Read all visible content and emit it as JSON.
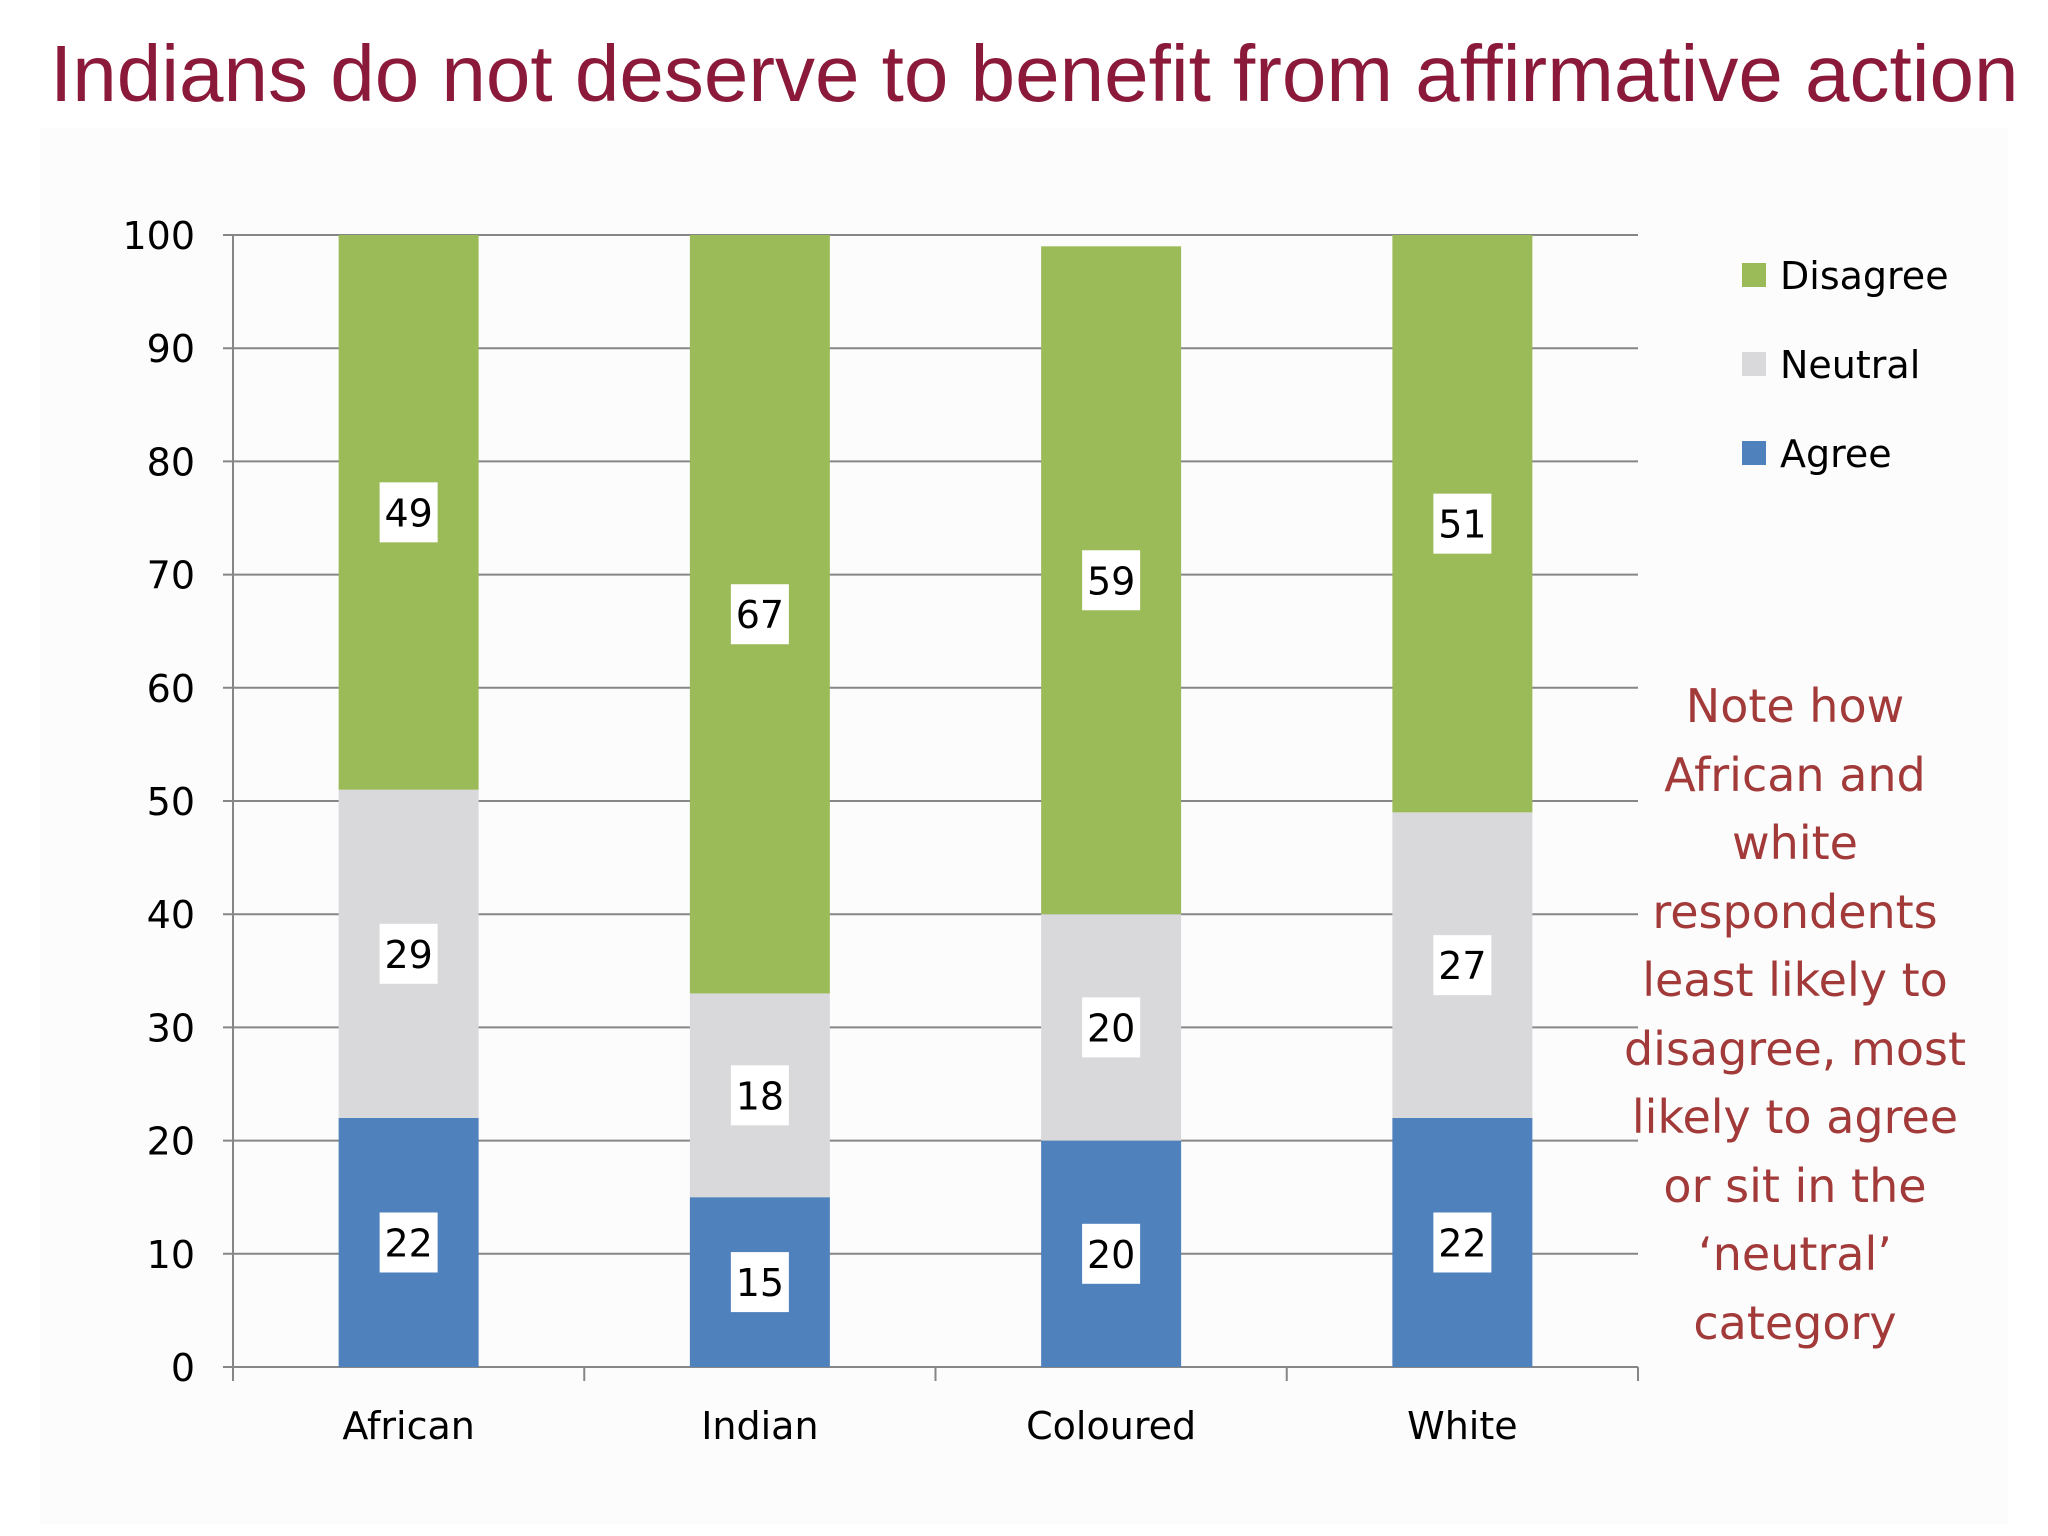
{
  "title": "Indians do not deserve to benefit from affirmative action",
  "note": "Note how African and white respondents least likely to disagree, most likely to agree or sit in the ‘neutral’ category",
  "colors": {
    "title": "#8b1a3a",
    "note": "#a23a3a",
    "Agree": "#4f81bd",
    "Neutral": "#d9d9db",
    "Disagree": "#9bbb59",
    "gridline": "#868686",
    "axis_text": "#000000"
  },
  "chart_data": {
    "type": "bar",
    "stacked": true,
    "title": "",
    "xlabel": "",
    "ylabel": "",
    "ylim": [
      0,
      100
    ],
    "yticks": [
      0,
      10,
      20,
      30,
      40,
      50,
      60,
      70,
      80,
      90,
      100
    ],
    "grid": true,
    "legend_position": "top-right",
    "categories": [
      "African",
      "Indian",
      "Coloured",
      "White"
    ],
    "series": [
      {
        "name": "Agree",
        "values": [
          22,
          15,
          20,
          22
        ]
      },
      {
        "name": "Neutral",
        "values": [
          29,
          18,
          20,
          27
        ]
      },
      {
        "name": "Disagree",
        "values": [
          49,
          67,
          59,
          51
        ]
      }
    ],
    "legend_order": [
      "Disagree",
      "Neutral",
      "Agree"
    ]
  }
}
